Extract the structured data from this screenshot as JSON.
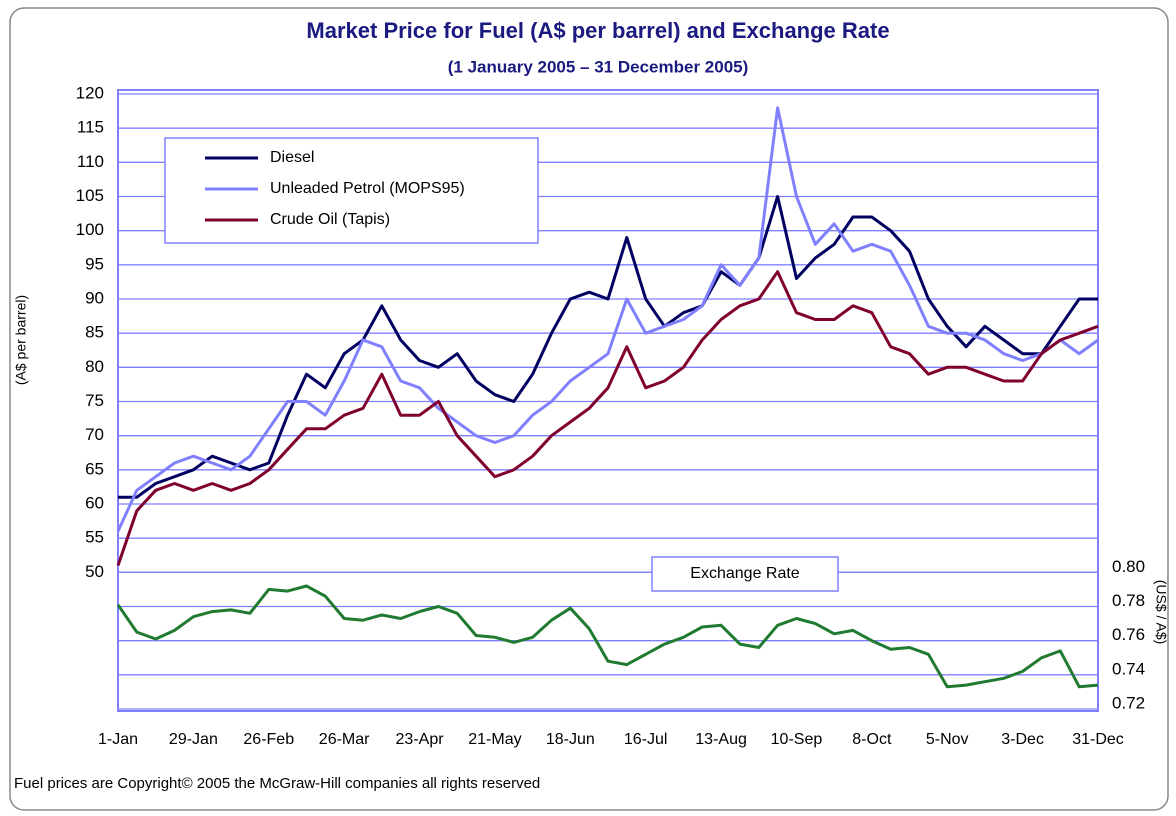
{
  "chart_data": {
    "type": "line",
    "title": "Market Price for Fuel (A$ per barrel) and Exchange Rate",
    "subtitle": "(1 January 2005 – 31 December 2005)",
    "y_label": "(A$ per barrel)",
    "y2_label": "(US$ / A$)",
    "footnote": "Fuel prices are Copyright© 2005 the McGraw-Hill companies all rights reserved",
    "x": [
      0,
      7,
      14,
      21,
      28,
      35,
      42,
      49,
      56,
      63,
      70,
      77,
      84,
      91,
      98,
      105,
      112,
      119,
      126,
      133,
      140,
      147,
      154,
      161,
      168,
      175,
      182,
      189,
      196,
      203,
      210,
      217,
      224,
      231,
      238,
      245,
      252,
      259,
      266,
      273,
      280,
      287,
      294,
      301,
      308,
      315,
      322,
      329,
      336,
      343,
      350,
      357,
      364
    ],
    "xlim": [
      0,
      364
    ],
    "xticks": [
      {
        "value": 0,
        "label": "1-Jan"
      },
      {
        "value": 28,
        "label": "29-Jan"
      },
      {
        "value": 56,
        "label": "26-Feb"
      },
      {
        "value": 84,
        "label": "26-Mar"
      },
      {
        "value": 112,
        "label": "23-Apr"
      },
      {
        "value": 140,
        "label": "21-May"
      },
      {
        "value": 168,
        "label": "18-Jun"
      },
      {
        "value": 196,
        "label": "16-Jul"
      },
      {
        "value": 224,
        "label": "13-Aug"
      },
      {
        "value": 252,
        "label": "10-Sep"
      },
      {
        "value": 280,
        "label": "8-Oct"
      },
      {
        "value": 308,
        "label": "5-Nov"
      },
      {
        "value": 336,
        "label": "3-Dec"
      },
      {
        "value": 364,
        "label": "31-Dec"
      }
    ],
    "ylim": [
      30,
      120
    ],
    "yticks": [
      50,
      55,
      60,
      65,
      70,
      75,
      80,
      85,
      90,
      95,
      100,
      105,
      110,
      115,
      120
    ],
    "y2lim": [
      0.72,
      1.08
    ],
    "y2ticks": [
      0.72,
      0.74,
      0.76,
      0.78,
      {
        "value": 0.8,
        "label": "0.80"
      }
    ],
    "grid": true,
    "series": [
      {
        "name": "Diesel",
        "color": "#000060",
        "values": [
          61,
          61,
          63,
          64,
          65,
          67,
          66,
          65,
          66,
          73,
          79,
          77,
          82,
          84,
          89,
          84,
          81,
          80,
          82,
          78,
          76,
          75,
          79,
          85,
          90,
          91,
          90,
          99,
          90,
          86,
          88,
          89,
          94,
          92,
          96,
          105,
          93,
          96,
          98,
          102,
          102,
          100,
          97,
          90,
          86,
          83,
          86,
          84,
          82,
          82,
          86,
          90,
          90
        ]
      },
      {
        "name": "Unleaded Petrol (MOPS95)",
        "color": "#8080ff",
        "values": [
          56,
          62,
          64,
          66,
          67,
          66,
          65,
          67,
          71,
          75,
          75,
          73,
          78,
          84,
          83,
          78,
          77,
          74,
          72,
          70,
          69,
          70,
          73,
          75,
          78,
          80,
          82,
          90,
          85,
          86,
          87,
          89,
          95,
          92,
          96,
          118,
          105,
          98,
          101,
          97,
          98,
          97,
          92,
          86,
          85,
          85,
          84,
          82,
          81,
          82,
          84,
          82,
          84
        ]
      },
      {
        "name": "Crude Oil (Tapis)",
        "color": "#800030",
        "values": [
          51,
          59,
          62,
          63,
          62,
          63,
          62,
          63,
          65,
          68,
          71,
          71,
          73,
          74,
          79,
          73,
          73,
          75,
          70,
          67,
          64,
          65,
          67,
          70,
          72,
          74,
          77,
          83,
          77,
          78,
          80,
          84,
          87,
          89,
          90,
          94,
          88,
          87,
          87,
          89,
          88,
          83,
          82,
          79,
          80,
          80,
          79,
          78,
          78,
          82,
          84,
          85,
          86
        ]
      },
      {
        "name": "Exchange Rate",
        "color": "#207a30",
        "axis": "y2",
        "values": [
          0.781,
          0.765,
          0.761,
          0.766,
          0.774,
          0.777,
          0.778,
          0.776,
          0.79,
          0.789,
          0.792,
          0.786,
          0.773,
          0.772,
          0.775,
          0.773,
          0.777,
          0.78,
          0.776,
          0.763,
          0.762,
          0.759,
          0.762,
          0.772,
          0.779,
          0.767,
          0.748,
          0.746,
          0.752,
          0.758,
          0.762,
          0.768,
          0.769,
          0.758,
          0.756,
          0.769,
          0.773,
          0.77,
          0.764,
          0.766,
          0.76,
          0.755,
          0.756,
          0.752,
          0.733,
          0.734,
          0.736,
          0.738,
          0.742,
          0.75,
          0.754,
          0.733,
          0.734
        ]
      }
    ]
  }
}
